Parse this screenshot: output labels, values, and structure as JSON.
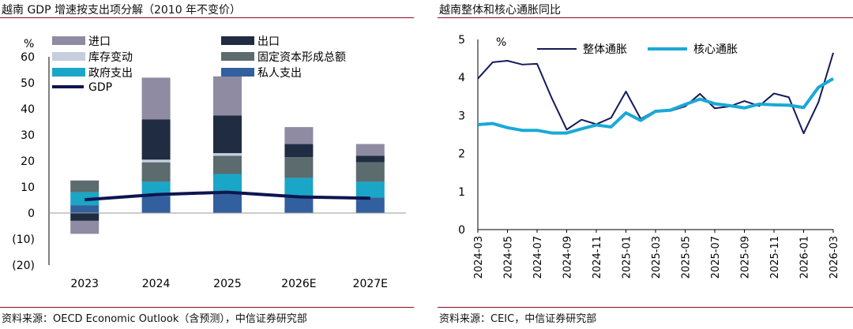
{
  "left_panel": {
    "title": "越南 GDP 增速按支出项分解（2010 年不变价）",
    "source": "资料来源：OECD Economic Outlook（含预测），中信证券研究部"
  },
  "right_panel": {
    "title": "越南整体和核心通胀同比",
    "source": "资料来源：CEIC，中信证券研究部"
  },
  "colors": {
    "rule": "#8b0a1e",
    "imports": "#8e8ba2",
    "exports": "#202c42",
    "inventory": "#c6cdde",
    "fixed_investment": "#5b6b6e",
    "government": "#1aa6c6",
    "private": "#32609e",
    "gdp": "#0d1550",
    "headline": "#141a5a",
    "core": "#19a9d6"
  },
  "chart_data": [
    {
      "type": "bar",
      "stacked": true,
      "ylabel": "%",
      "ylim": [
        -20,
        60
      ],
      "yticks": [
        "(20)",
        "(10)",
        "0",
        "10",
        "20",
        "30",
        "40",
        "50",
        "60"
      ],
      "categories": [
        "2023",
        "2024",
        "2025",
        "2026E",
        "2027E"
      ],
      "series": [
        {
          "name": "私人支出",
          "values": [
            3.0,
            6.5,
            8.0,
            6.0,
            6.0
          ]
        },
        {
          "name": "政府支出",
          "values": [
            5.0,
            5.5,
            7.0,
            7.5,
            6.0
          ]
        },
        {
          "name": "固定资本形成总额",
          "values": [
            4.5,
            7.5,
            7.0,
            8.0,
            7.5
          ]
        },
        {
          "name": "库存变动",
          "values": [
            0.0,
            1.0,
            1.0,
            0.0,
            0.0
          ]
        },
        {
          "name": "出口",
          "values": [
            -3.0,
            15.5,
            14.5,
            5.0,
            2.5
          ]
        },
        {
          "name": "进口",
          "values": [
            -5.0,
            16.0,
            15.0,
            6.5,
            4.5
          ]
        }
      ],
      "gdp": {
        "name": "GDP",
        "values": [
          5.1,
          7.1,
          8.0,
          6.2,
          5.7
        ]
      },
      "legend": [
        {
          "name": "进口",
          "series": "imports"
        },
        {
          "name": "出口",
          "series": "exports"
        },
        {
          "name": "库存变动",
          "series": "inventory"
        },
        {
          "name": "固定资本形成总额",
          "series": "fixed_investment"
        },
        {
          "name": "政府支出",
          "series": "government"
        },
        {
          "name": "私人支出",
          "series": "private"
        },
        {
          "name": "GDP",
          "series": "gdp"
        }
      ]
    },
    {
      "type": "line",
      "ylabel": "%",
      "ylim": [
        0,
        5
      ],
      "yticks": [
        "0",
        "1",
        "2",
        "3",
        "4",
        "5"
      ],
      "x": [
        "2024-03",
        "2024-04",
        "2024-05",
        "2024-06",
        "2024-07",
        "2024-08",
        "2024-09",
        "2024-10",
        "2024-11",
        "2024-12",
        "2025-01",
        "2025-02",
        "2025-03",
        "2025-04",
        "2025-05",
        "2025-06",
        "2025-07",
        "2025-08",
        "2025-09",
        "2025-10",
        "2025-11",
        "2025-12",
        "2026-01",
        "2026-02",
        "2026-03"
      ],
      "xtick_labels": [
        "2024-03",
        "2024-05",
        "2024-07",
        "2024-09",
        "2024-11",
        "2025-01",
        "2025-03",
        "2025-05",
        "2025-07",
        "2025-09",
        "2025-11",
        "2026-01",
        "2026-03"
      ],
      "series": [
        {
          "name": "整体通胀",
          "values": [
            3.97,
            4.4,
            4.44,
            4.34,
            4.36,
            3.45,
            2.63,
            2.89,
            2.77,
            2.94,
            3.63,
            2.91,
            3.13,
            3.12,
            3.24,
            3.57,
            3.19,
            3.24,
            3.38,
            3.25,
            3.58,
            3.48,
            2.53,
            3.35,
            4.65
          ]
        },
        {
          "name": "核心通胀",
          "values": [
            2.76,
            2.79,
            2.68,
            2.61,
            2.61,
            2.54,
            2.54,
            2.65,
            2.75,
            2.7,
            3.07,
            2.87,
            3.11,
            3.14,
            3.29,
            3.43,
            3.31,
            3.26,
            3.2,
            3.3,
            3.28,
            3.27,
            3.21,
            3.74,
            3.97
          ]
        }
      ]
    }
  ]
}
